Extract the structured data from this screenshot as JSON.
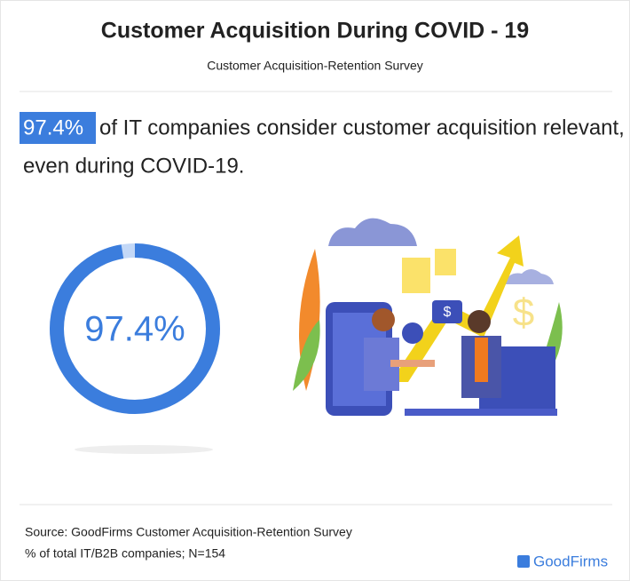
{
  "chart_data": {
    "type": "donut",
    "title": "Customer Acquisition During COVID - 19",
    "subtitle": "Customer Acquisition-Retention Survey",
    "statement": [
      "of IT companies consider customer acquisition relevant,",
      "even during COVID-19."
    ],
    "values": [
      97.4
    ],
    "value_labels": [
      "97.4%"
    ],
    "ylim": [
      0,
      100
    ],
    "color": "#3b7ddd",
    "track_color": "#c3d8f7",
    "source": "Source: GoodFirms Customer Acquisition-Retention Survey",
    "note": "% of total IT/B2B companies; N=154",
    "brand": "GoodFirms"
  }
}
